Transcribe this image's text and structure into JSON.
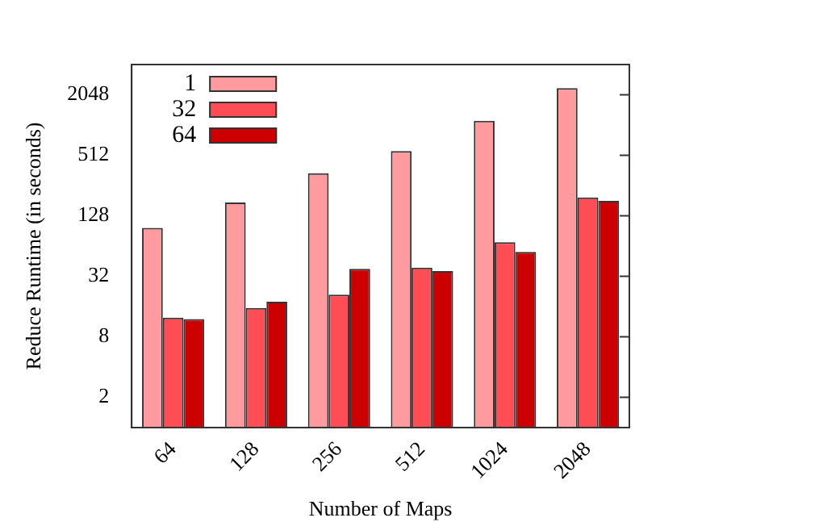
{
  "chart_data": {
    "type": "bar",
    "xlabel": "Number of Maps",
    "ylabel": "Reduce Runtime (in seconds)",
    "categories": [
      "64",
      "128",
      "256",
      "512",
      "1024",
      "2048"
    ],
    "series": [
      {
        "name": "1",
        "color": "#ff9a9e",
        "values": [
          97,
          174,
          340,
          563,
          1130,
          2380
        ]
      },
      {
        "name": "32",
        "color": "#ff4d55",
        "values": [
          12.4,
          15.5,
          21,
          39,
          70,
          195
        ]
      },
      {
        "name": "64",
        "color": "#cc0000",
        "values": [
          12,
          17.9,
          38,
          36,
          56,
          180
        ]
      }
    ],
    "log": true,
    "ylim": [
      1,
      4096
    ],
    "yticks": [
      2,
      8,
      32,
      128,
      512,
      2048
    ],
    "grid": false,
    "legend": "top left"
  }
}
